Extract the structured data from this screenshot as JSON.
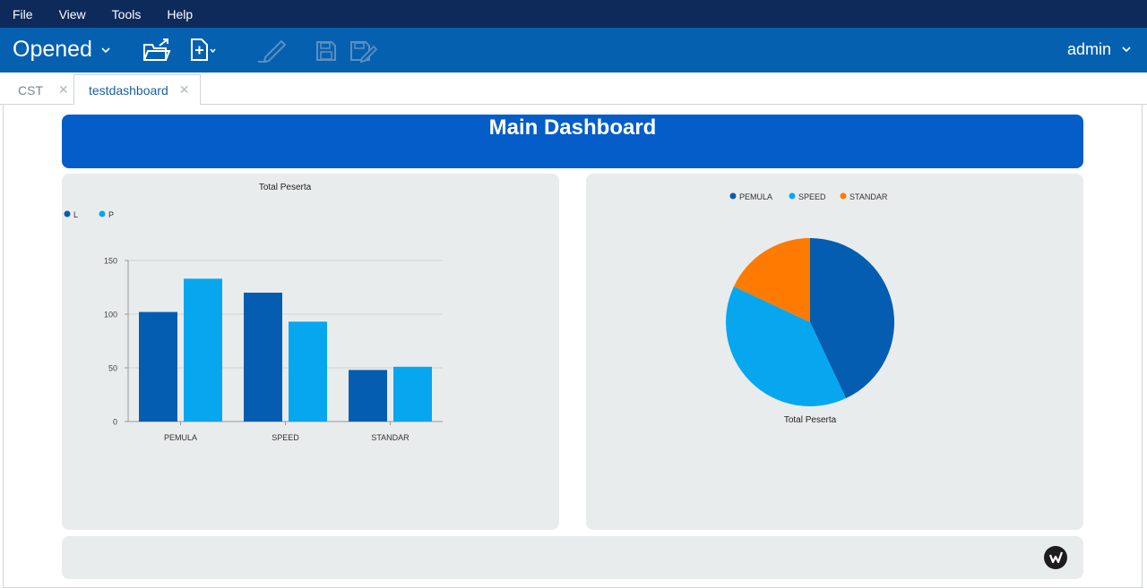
{
  "menu": {
    "items": [
      "File",
      "View",
      "Tools",
      "Help"
    ]
  },
  "toolbar": {
    "opened_label": "Opened",
    "user": "admin"
  },
  "tabs": [
    {
      "label": "CST",
      "active": false
    },
    {
      "label": "testdashboard",
      "active": true
    }
  ],
  "dashboard": {
    "title": "Main Dashboard"
  },
  "colors": {
    "pemula": "#045db0",
    "speed": "#06a7ef",
    "standar": "#fe7a00",
    "series_l": "#045db0",
    "series_p": "#06a7ef"
  },
  "chart_data": [
    {
      "type": "bar",
      "title": "Total Peserta",
      "categories": [
        "PEMULA",
        "SPEED",
        "STANDAR"
      ],
      "series": [
        {
          "name": "L",
          "values": [
            102,
            120,
            48
          ]
        },
        {
          "name": "P",
          "values": [
            133,
            93,
            51
          ]
        }
      ],
      "ylim": [
        0,
        150
      ],
      "yticks": [
        0,
        50,
        100,
        150
      ],
      "legend": "top-left",
      "grid": true
    },
    {
      "type": "pie",
      "title": "Total Peserta",
      "labels": [
        "PEMULA",
        "SPEED",
        "STANDAR"
      ],
      "values": [
        43,
        39,
        18
      ],
      "legend": "top-center"
    }
  ]
}
